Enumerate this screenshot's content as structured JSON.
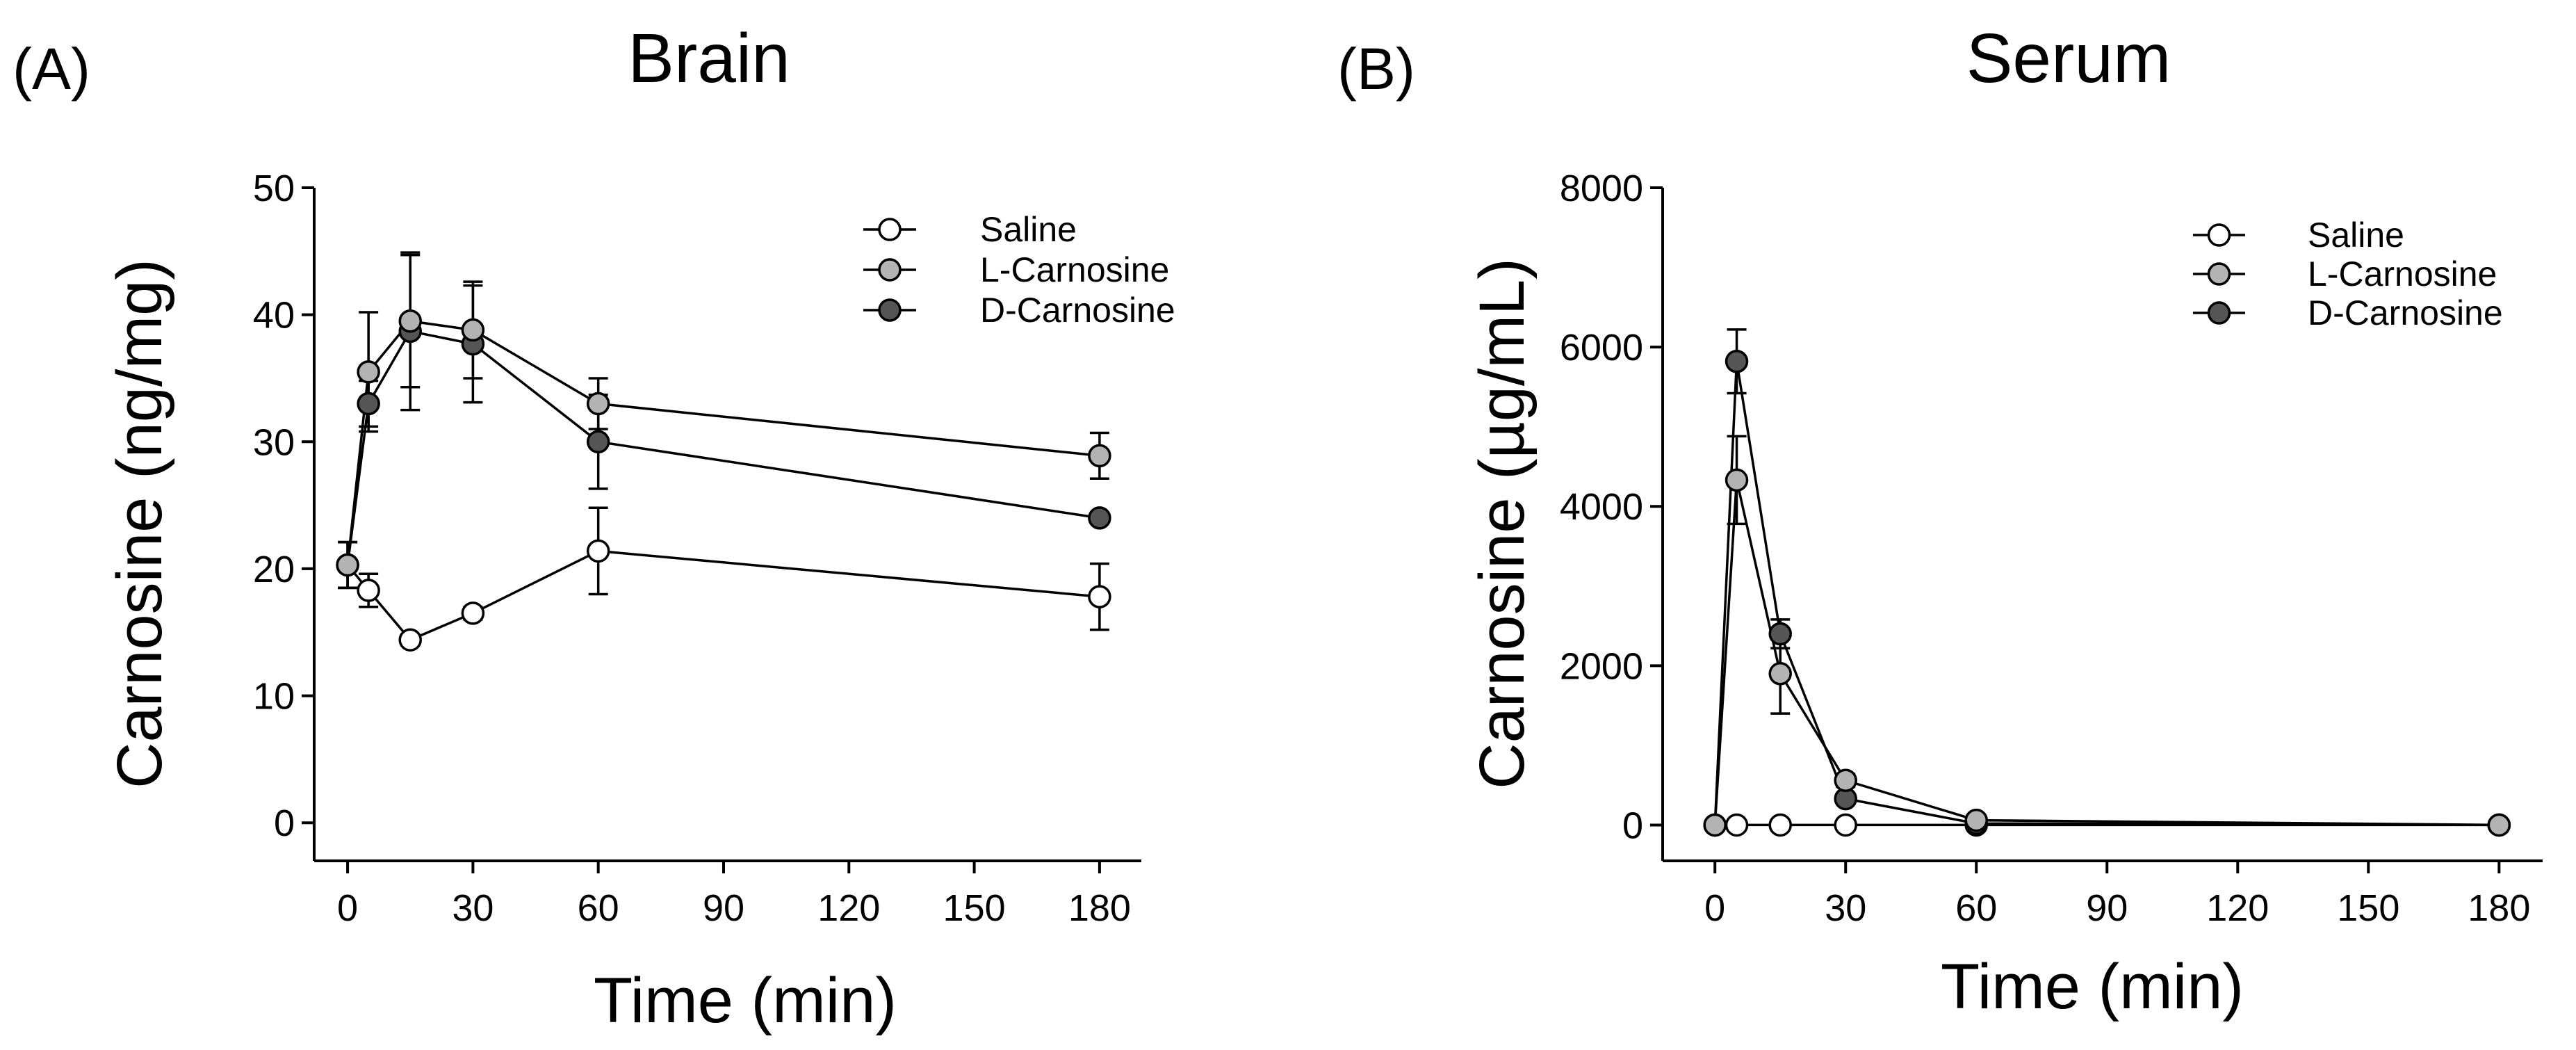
{
  "chart_data": [
    {
      "type": "line",
      "panel_label": "(A)",
      "title": "Brain",
      "xlabel": "Time (min)",
      "ylabel": "Carnosine (ng/mg)",
      "xlim": [
        -8,
        190
      ],
      "ylim": [
        -3,
        50
      ],
      "xticks": [
        0,
        30,
        60,
        90,
        120,
        150,
        180
      ],
      "yticks": [
        0,
        10,
        20,
        30,
        40,
        50
      ],
      "legend_position": "top-right",
      "series": [
        {
          "name": "Saline",
          "color": "#ffffff",
          "x": [
            0,
            5,
            15,
            30,
            60,
            180
          ],
          "y": [
            20.3,
            18.3,
            14.4,
            16.5,
            21.4,
            17.8
          ],
          "err": [
            1.8,
            1.3,
            0.4,
            0.5,
            3.4,
            2.6
          ]
        },
        {
          "name": "L-Carnosine",
          "color": "#b3b3b3",
          "x": [
            0,
            5,
            15,
            30,
            60,
            180
          ],
          "y": [
            20.3,
            35.5,
            39.5,
            38.8,
            33.0,
            28.9
          ],
          "err": [
            1.8,
            4.7,
            5.2,
            3.8,
            2.0,
            1.8
          ]
        },
        {
          "name": "D-Carnosine",
          "color": "#555555",
          "x": [
            0,
            5,
            15,
            30,
            60,
            180
          ],
          "y": [
            20.3,
            33.0,
            38.7,
            37.7,
            30.0,
            24.0
          ],
          "err": [
            1.8,
            1.8,
            6.2,
            4.6,
            3.7,
            0.4
          ]
        }
      ]
    },
    {
      "type": "line",
      "panel_label": "(B)",
      "title": "Serum",
      "xlabel": "Time (min)",
      "ylabel": "Carnosine (µg/mL)",
      "xlim": [
        -12,
        190
      ],
      "ylim": [
        -450,
        8000
      ],
      "xticks": [
        0,
        30,
        60,
        90,
        120,
        150,
        180
      ],
      "yticks": [
        0,
        2000,
        4000,
        6000,
        8000
      ],
      "legend_position": "top-right",
      "series": [
        {
          "name": "Saline",
          "color": "#ffffff",
          "x": [
            0,
            5,
            15,
            30,
            60,
            180
          ],
          "y": [
            0,
            0,
            0,
            0,
            0,
            0
          ],
          "err": [
            0,
            0,
            0,
            0,
            0,
            0
          ]
        },
        {
          "name": "L-Carnosine",
          "color": "#b3b3b3",
          "x": [
            0,
            5,
            15,
            30,
            60,
            180
          ],
          "y": [
            0,
            4330,
            1900,
            560,
            60,
            0
          ],
          "err": [
            0,
            550,
            500,
            80,
            20,
            0
          ]
        },
        {
          "name": "D-Carnosine",
          "color": "#555555",
          "x": [
            0,
            5,
            15,
            30,
            60,
            180
          ],
          "y": [
            0,
            5820,
            2400,
            330,
            20,
            0
          ],
          "err": [
            0,
            400,
            180,
            60,
            10,
            0
          ]
        }
      ]
    }
  ]
}
